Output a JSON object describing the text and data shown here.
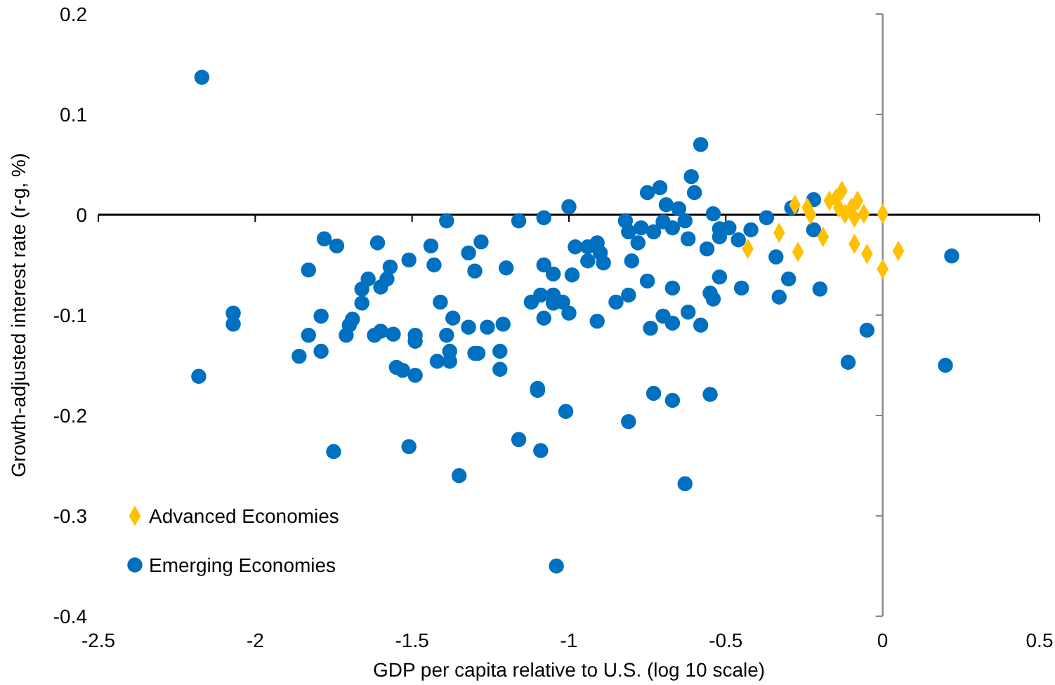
{
  "chart_data": {
    "type": "scatter",
    "xlabel": "GDP per capita relative to U.S. (log 10 scale)",
    "ylabel": "Growth-adjusted interest rate (r-g, %)",
    "xlim": [
      -2.5,
      0.5
    ],
    "xticks": [
      -2.5,
      -2,
      -1.5,
      -1,
      -0.5,
      0,
      0.5
    ],
    "ylim": [
      -0.4,
      0.2
    ],
    "yticks": [
      -0.4,
      -0.3,
      -0.2,
      -0.1,
      0,
      0.1,
      0.2
    ],
    "grid": false,
    "legend": "bottom left",
    "series": [
      {
        "name": "Advanced Economies",
        "color": "#ffc000",
        "marker": "diamond",
        "x": [
          -0.28,
          -0.24,
          -0.23,
          -0.33,
          -0.27,
          -0.19,
          -0.43,
          -0.17,
          -0.13,
          -0.14,
          -0.12,
          -0.09,
          -0.08,
          -0.06,
          -0.1,
          -0.09,
          -0.05,
          0.0,
          0.0,
          0.05,
          -0.15
        ],
        "values": [
          0.01,
          0.007,
          0.0,
          -0.018,
          -0.037,
          -0.022,
          -0.034,
          0.014,
          0.024,
          0.007,
          0.001,
          -0.003,
          0.014,
          0.001,
          0.007,
          -0.029,
          -0.039,
          -0.054,
          0.001,
          -0.036,
          0.016
        ]
      },
      {
        "name": "Emerging Economies",
        "color": "#0070c0",
        "marker": "circle",
        "x": [
          -2.17,
          -2.18,
          -2.07,
          -2.07,
          -1.83,
          -1.78,
          -1.74,
          -1.61,
          -1.79,
          -1.83,
          -1.86,
          -1.79,
          -1.75,
          -1.71,
          -1.7,
          -1.69,
          -1.66,
          -1.66,
          -1.64,
          -1.6,
          -1.58,
          -1.57,
          -1.62,
          -1.6,
          -1.56,
          -1.55,
          -1.53,
          -1.49,
          -1.49,
          -1.49,
          -1.51,
          -1.51,
          -1.44,
          -1.43,
          -1.39,
          -1.41,
          -1.37,
          -1.39,
          -1.38,
          -1.42,
          -1.38,
          -1.35,
          -1.32,
          -1.3,
          -1.32,
          -1.3,
          -1.28,
          -1.2,
          -1.16,
          -1.08,
          -1.0,
          -1.08,
          -1.05,
          -0.99,
          -0.98,
          -0.94,
          -0.91,
          -0.9,
          -0.89,
          -0.94,
          -1.12,
          -1.09,
          -1.05,
          -1.05,
          -1.02,
          -1.0,
          -1.08,
          -1.26,
          -1.21,
          -1.29,
          -1.22,
          -1.22,
          -1.1,
          -0.91,
          -0.85,
          -0.81,
          -0.8,
          -0.75,
          -0.78,
          -0.82,
          -0.81,
          -0.77,
          -0.73,
          -0.75,
          -0.71,
          -0.69,
          -0.7,
          -0.67,
          -0.65,
          -0.63,
          -0.62,
          -0.61,
          -0.6,
          -0.58,
          -0.67,
          -0.7,
          -0.67,
          -0.74,
          -0.62,
          -0.58,
          -0.56,
          -0.54,
          -0.52,
          -0.49,
          -0.52,
          -0.52,
          -0.55,
          -0.54,
          -0.45,
          -0.46,
          -0.42,
          -0.37,
          -1.1,
          -1.01,
          -1.16,
          -1.09,
          -1.04,
          -0.81,
          -0.73,
          -0.67,
          -0.55,
          -0.63,
          -0.11,
          -0.29,
          -0.22,
          -0.22,
          -0.34,
          -0.3,
          -0.33,
          -0.2,
          -0.05,
          0.2,
          0.22
        ],
        "values": [
          0.137,
          -0.161,
          -0.098,
          -0.109,
          -0.055,
          -0.024,
          -0.031,
          -0.028,
          -0.101,
          -0.12,
          -0.141,
          -0.136,
          -0.236,
          -0.12,
          -0.11,
          -0.104,
          -0.088,
          -0.074,
          -0.064,
          -0.072,
          -0.064,
          -0.052,
          -0.12,
          -0.116,
          -0.119,
          -0.152,
          -0.155,
          -0.16,
          -0.12,
          -0.126,
          -0.231,
          -0.045,
          -0.031,
          -0.05,
          -0.006,
          -0.087,
          -0.103,
          -0.12,
          -0.136,
          -0.146,
          -0.146,
          -0.26,
          -0.038,
          -0.056,
          -0.112,
          -0.138,
          -0.027,
          -0.053,
          -0.006,
          -0.003,
          0.008,
          -0.05,
          -0.059,
          -0.06,
          -0.032,
          -0.032,
          -0.028,
          -0.038,
          -0.048,
          -0.046,
          -0.087,
          -0.08,
          -0.08,
          -0.088,
          -0.087,
          -0.098,
          -0.103,
          -0.112,
          -0.109,
          -0.138,
          -0.136,
          -0.154,
          -0.173,
          -0.106,
          -0.087,
          -0.08,
          -0.046,
          -0.066,
          -0.028,
          -0.006,
          -0.017,
          -0.013,
          -0.017,
          0.022,
          0.027,
          0.01,
          -0.007,
          -0.013,
          0.006,
          -0.006,
          -0.024,
          0.038,
          0.022,
          0.07,
          -0.073,
          -0.101,
          -0.108,
          -0.113,
          -0.097,
          -0.11,
          -0.034,
          0.001,
          -0.014,
          -0.013,
          -0.022,
          -0.062,
          -0.078,
          -0.084,
          -0.073,
          -0.025,
          -0.015,
          -0.003,
          -0.175,
          -0.196,
          -0.224,
          -0.235,
          -0.35,
          -0.206,
          -0.178,
          -0.185,
          -0.179,
          -0.268,
          -0.147,
          0.007,
          0.015,
          -0.015,
          -0.042,
          -0.064,
          -0.082,
          -0.074,
          -0.115,
          -0.15,
          -0.041
        ]
      }
    ]
  }
}
